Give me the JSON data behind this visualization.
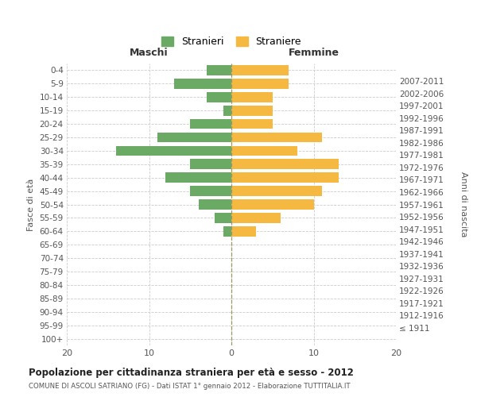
{
  "age_groups": [
    "100+",
    "95-99",
    "90-94",
    "85-89",
    "80-84",
    "75-79",
    "70-74",
    "65-69",
    "60-64",
    "55-59",
    "50-54",
    "45-49",
    "40-44",
    "35-39",
    "30-34",
    "25-29",
    "20-24",
    "15-19",
    "10-14",
    "5-9",
    "0-4"
  ],
  "birth_years": [
    "≤ 1911",
    "1912-1916",
    "1917-1921",
    "1922-1926",
    "1927-1931",
    "1932-1936",
    "1937-1941",
    "1942-1946",
    "1947-1951",
    "1952-1956",
    "1957-1961",
    "1962-1966",
    "1967-1971",
    "1972-1976",
    "1977-1981",
    "1982-1986",
    "1987-1991",
    "1992-1996",
    "1997-2001",
    "2002-2006",
    "2007-2011"
  ],
  "maschi": [
    0,
    0,
    0,
    0,
    0,
    0,
    0,
    0,
    1,
    2,
    4,
    5,
    8,
    5,
    14,
    9,
    5,
    1,
    3,
    7,
    3
  ],
  "femmine": [
    0,
    0,
    0,
    0,
    0,
    0,
    0,
    0,
    3,
    6,
    10,
    11,
    13,
    13,
    8,
    11,
    5,
    5,
    5,
    7,
    7
  ],
  "maschi_color": "#6aaa64",
  "femmine_color": "#f5b942",
  "title1": "Popolazione per cittadinanza straniera per età e sesso - 2012",
  "title2": "COMUNE DI ASCOLI SATRIANO (FG) - Dati ISTAT 1° gennaio 2012 - Elaborazione TUTTITALIA.IT",
  "legend_maschi": "Stranieri",
  "legend_femmine": "Straniere",
  "maschi_label": "Maschi",
  "femmine_label": "Femmine",
  "ylabel_left": "Fasce di età",
  "ylabel_right": "Anni di nascita",
  "xlim": 20,
  "background_color": "#ffffff",
  "grid_color": "#cccccc"
}
